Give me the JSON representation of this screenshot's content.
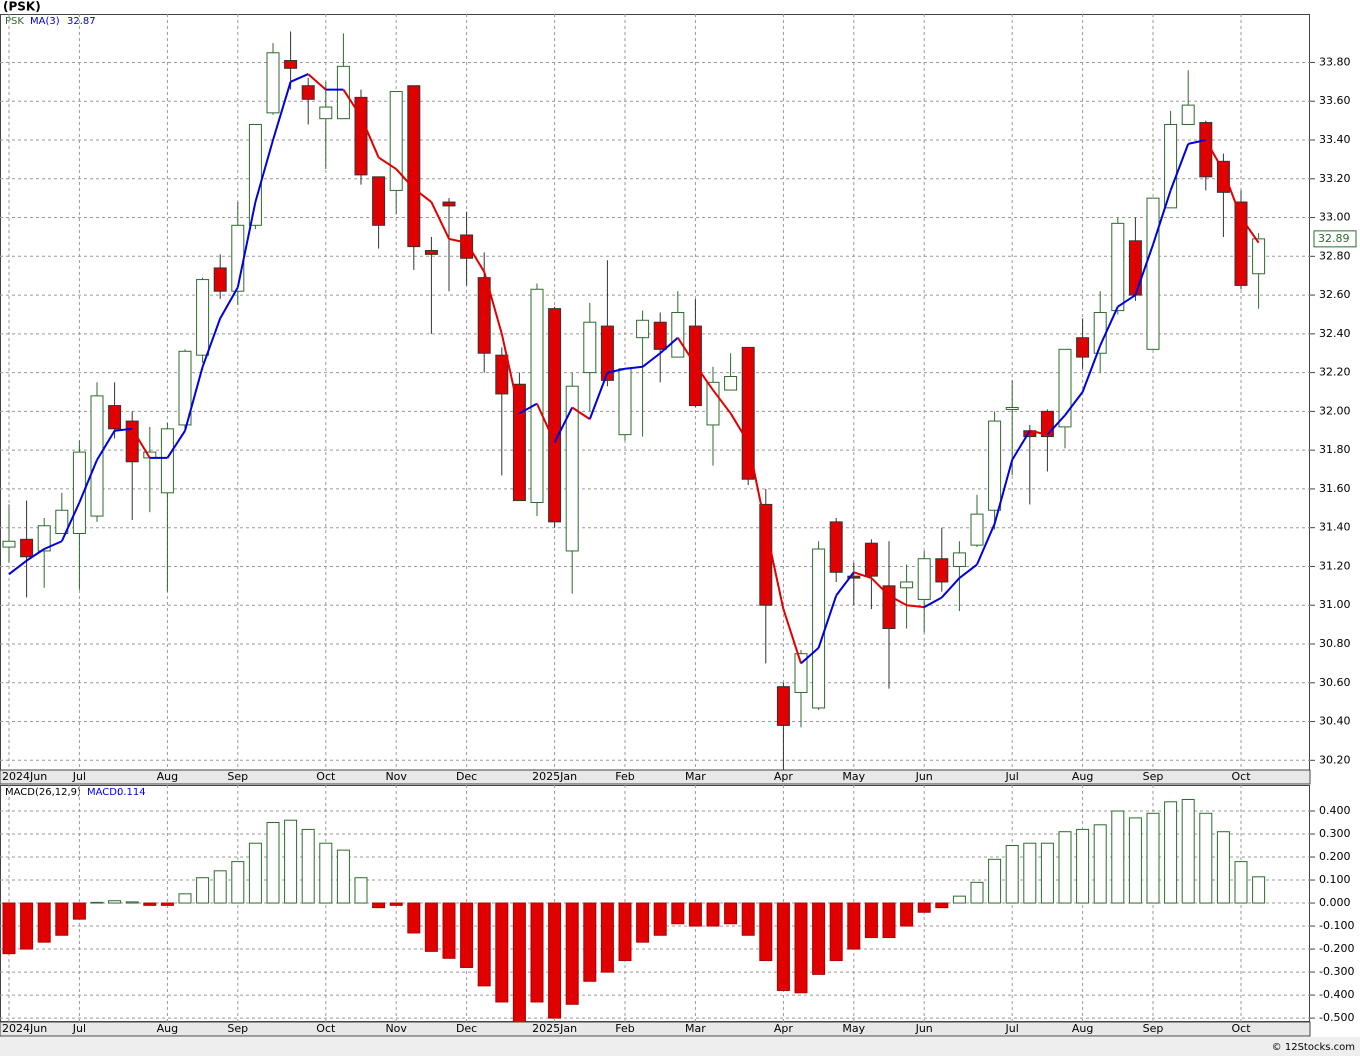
{
  "chart_data": [
    {
      "type": "candlestick",
      "title": "(PSK)",
      "symbol": "PSK",
      "ma_name": "MA(3)",
      "open": [
        31.3,
        31.34,
        31.28,
        31.37,
        31.37,
        31.46,
        32.03,
        31.95,
        31.76,
        31.58,
        31.93,
        32.29,
        32.74,
        32.62,
        32.96,
        33.54,
        33.81,
        33.68,
        33.51,
        33.51,
        33.62,
        33.21,
        33.14,
        33.68,
        32.83,
        33.08,
        32.91,
        32.69,
        32.29,
        32.14,
        31.53,
        32.53,
        31.28,
        32.2,
        32.44,
        31.88,
        32.38,
        32.46,
        32.28,
        32.44,
        31.93,
        32.11,
        32.33,
        31.52,
        30.58,
        30.55,
        30.47,
        31.43,
        31.15,
        31.32,
        31.1,
        31.09,
        31.03,
        31.24,
        31.2,
        31.31,
        31.49,
        32.01,
        31.9,
        32.0,
        31.92,
        32.38,
        32.3,
        32.52,
        32.88,
        32.32,
        33.05,
        33.48,
        33.49,
        33.29,
        33.08,
        32.71
      ],
      "high": [
        31.52,
        31.54,
        31.45,
        31.58,
        31.85,
        32.15,
        32.15,
        32.0,
        31.92,
        31.94,
        32.32,
        32.69,
        32.81,
        33.08,
        33.48,
        33.9,
        33.96,
        33.72,
        33.7,
        33.95,
        33.66,
        33.21,
        33.65,
        33.68,
        32.9,
        33.1,
        33.03,
        32.82,
        32.33,
        32.2,
        32.66,
        32.54,
        32.2,
        32.56,
        32.78,
        32.22,
        32.52,
        32.51,
        32.62,
        32.58,
        32.23,
        32.3,
        32.33,
        31.6,
        30.6,
        30.77,
        31.33,
        31.45,
        31.22,
        31.34,
        31.33,
        31.21,
        31.28,
        31.4,
        31.33,
        31.57,
        32.0,
        32.16,
        31.93,
        32.01,
        32.32,
        32.48,
        32.62,
        33.0,
        33.0,
        33.1,
        33.55,
        33.76,
        33.5,
        33.33,
        33.14,
        32.92
      ],
      "low": [
        31.22,
        31.04,
        31.09,
        31.37,
        31.08,
        31.43,
        31.86,
        31.44,
        31.48,
        31.07,
        31.9,
        32.25,
        32.58,
        32.55,
        32.94,
        33.53,
        33.66,
        33.48,
        33.25,
        33.51,
        33.17,
        32.84,
        33.02,
        32.73,
        32.4,
        32.62,
        32.65,
        32.2,
        31.67,
        31.54,
        31.46,
        31.4,
        31.06,
        32.0,
        32.13,
        31.85,
        31.87,
        32.15,
        32.28,
        32.02,
        31.72,
        32.11,
        31.62,
        30.7,
        30.15,
        30.37,
        30.46,
        31.12,
        31.0,
        30.98,
        30.57,
        30.88,
        30.86,
        31.07,
        30.97,
        31.3,
        31.39,
        31.67,
        31.52,
        31.69,
        31.81,
        32.22,
        32.2,
        32.5,
        32.57,
        32.32,
        33.05,
        33.48,
        33.14,
        32.9,
        32.63,
        32.53
      ],
      "close": [
        31.33,
        31.25,
        31.41,
        31.49,
        31.79,
        32.08,
        31.91,
        31.74,
        31.79,
        31.91,
        32.31,
        32.68,
        32.62,
        32.96,
        33.48,
        33.85,
        33.77,
        33.61,
        33.57,
        33.78,
        33.22,
        32.96,
        33.65,
        32.85,
        32.81,
        33.06,
        32.79,
        32.3,
        32.09,
        31.54,
        32.63,
        31.43,
        32.13,
        32.46,
        32.16,
        32.22,
        32.47,
        32.32,
        32.51,
        32.03,
        32.15,
        32.18,
        31.65,
        31.0,
        30.38,
        30.75,
        31.29,
        31.17,
        31.14,
        31.15,
        30.88,
        31.12,
        31.24,
        31.12,
        31.27,
        31.47,
        31.95,
        32.02,
        31.87,
        31.87,
        32.32,
        32.28,
        32.51,
        32.97,
        32.6,
        33.1,
        33.48,
        33.58,
        33.21,
        33.13,
        32.65,
        32.89
      ],
      "ma": [
        31.16,
        31.23,
        31.29,
        31.33,
        31.53,
        31.75,
        31.9,
        31.91,
        31.76,
        31.76,
        31.9,
        32.23,
        32.48,
        32.64,
        33.08,
        33.4,
        33.7,
        33.74,
        33.66,
        33.66,
        33.52,
        33.31,
        33.25,
        33.15,
        33.08,
        32.89,
        32.87,
        32.72,
        32.4,
        31.99,
        32.04,
        31.84,
        32.02,
        31.96,
        32.2,
        32.22,
        32.23,
        32.3,
        32.38,
        32.24,
        32.11,
        31.99,
        31.84,
        31.4,
        30.98,
        30.7,
        30.78,
        31.05,
        31.17,
        31.14,
        31.05,
        31.0,
        30.99,
        31.04,
        31.14,
        31.21,
        31.42,
        31.75,
        31.9,
        31.88,
        31.98,
        32.1,
        32.34,
        32.54,
        32.6,
        32.86,
        33.14,
        33.38,
        33.4,
        33.24,
        33.0,
        32.87
      ],
      "up_color": "#2d6b2d",
      "down_color": "#e00000",
      "ma_up_color": "#0000dd",
      "ma_down_color": "#e00000",
      "ylim": [
        30.15,
        34.05
      ],
      "yticks": [
        {
          "value": 30.2,
          "label": "30.20"
        },
        {
          "value": 30.4,
          "label": "30.40"
        },
        {
          "value": 30.6,
          "label": "30.60"
        },
        {
          "value": 30.8,
          "label": "30.80"
        },
        {
          "value": 31.0,
          "label": "31.00"
        },
        {
          "value": 31.2,
          "label": "31.20"
        },
        {
          "value": 31.4,
          "label": "31.40"
        },
        {
          "value": 31.6,
          "label": "31.60"
        },
        {
          "value": 31.8,
          "label": "31.80"
        },
        {
          "value": 32.0,
          "label": "32.00"
        },
        {
          "value": 32.2,
          "label": "32.20"
        },
        {
          "value": 32.4,
          "label": "32.40"
        },
        {
          "value": 32.6,
          "label": "32.60"
        },
        {
          "value": 32.8,
          "label": "32.80"
        },
        {
          "value": 33.0,
          "label": "33.00"
        },
        {
          "value": 33.2,
          "label": "33.20"
        },
        {
          "value": 33.4,
          "label": "33.40"
        },
        {
          "value": 33.6,
          "label": "33.60"
        },
        {
          "value": 33.8,
          "label": "33.80"
        }
      ],
      "xticks": [
        {
          "value": 0,
          "label": "2024Jun"
        },
        {
          "value": 4,
          "label": "Jul"
        },
        {
          "value": 9,
          "label": "Aug"
        },
        {
          "value": 13,
          "label": "Sep"
        },
        {
          "value": 18,
          "label": "Oct"
        },
        {
          "value": 22,
          "label": "Nov"
        },
        {
          "value": 26,
          "label": "Dec"
        },
        {
          "value": 31,
          "label": "2025Jan"
        },
        {
          "value": 35,
          "label": "Feb"
        },
        {
          "value": 39,
          "label": "Mar"
        },
        {
          "value": 44,
          "label": "Apr"
        },
        {
          "value": 48,
          "label": "May"
        },
        {
          "value": 52,
          "label": "Jun"
        },
        {
          "value": 57,
          "label": "Jul"
        },
        {
          "value": 61,
          "label": "Aug"
        },
        {
          "value": 65,
          "label": "Sep"
        },
        {
          "value": 70,
          "label": "Oct"
        }
      ],
      "grid": true
    },
    {
      "type": "bar",
      "title": "MACD(26,12,9)",
      "value_name": "MACD:",
      "values": [
        -0.22,
        -0.2,
        -0.17,
        -0.14,
        -0.07,
        0.003,
        0.01,
        0.005,
        -0.01,
        -0.01,
        0.04,
        0.11,
        0.14,
        0.18,
        0.26,
        0.35,
        0.36,
        0.32,
        0.26,
        0.23,
        0.11,
        -0.02,
        -0.01,
        -0.13,
        -0.21,
        -0.24,
        -0.28,
        -0.36,
        -0.43,
        -0.53,
        -0.43,
        -0.5,
        -0.44,
        -0.34,
        -0.3,
        -0.25,
        -0.17,
        -0.14,
        -0.09,
        -0.1,
        -0.1,
        -0.09,
        -0.14,
        -0.25,
        -0.38,
        -0.39,
        -0.31,
        -0.25,
        -0.2,
        -0.15,
        -0.15,
        -0.1,
        -0.04,
        -0.02,
        0.03,
        0.09,
        0.19,
        0.25,
        0.26,
        0.26,
        0.31,
        0.32,
        0.34,
        0.4,
        0.37,
        0.39,
        0.44,
        0.45,
        0.39,
        0.31,
        0.18,
        0.114
      ],
      "up_color": "#2d6b2d",
      "down_color": "#e00000",
      "ylim": [
        -0.517,
        0.513
      ],
      "yticks": [
        {
          "value": 0.4,
          "label": "0.400"
        },
        {
          "value": 0.3,
          "label": "0.300"
        },
        {
          "value": 0.2,
          "label": "0.200"
        },
        {
          "value": 0.1,
          "label": "0.100"
        },
        {
          "value": 0,
          "label": "0.000"
        },
        {
          "value": -0.1,
          "label": "-0.100"
        },
        {
          "value": -0.2,
          "label": "-0.200"
        },
        {
          "value": -0.3,
          "label": "-0.300"
        },
        {
          "value": -0.4,
          "label": "-0.400"
        },
        {
          "value": -0.5,
          "label": "-0.500"
        }
      ],
      "grid": true
    }
  ],
  "footer": "© 12Stocks.com"
}
